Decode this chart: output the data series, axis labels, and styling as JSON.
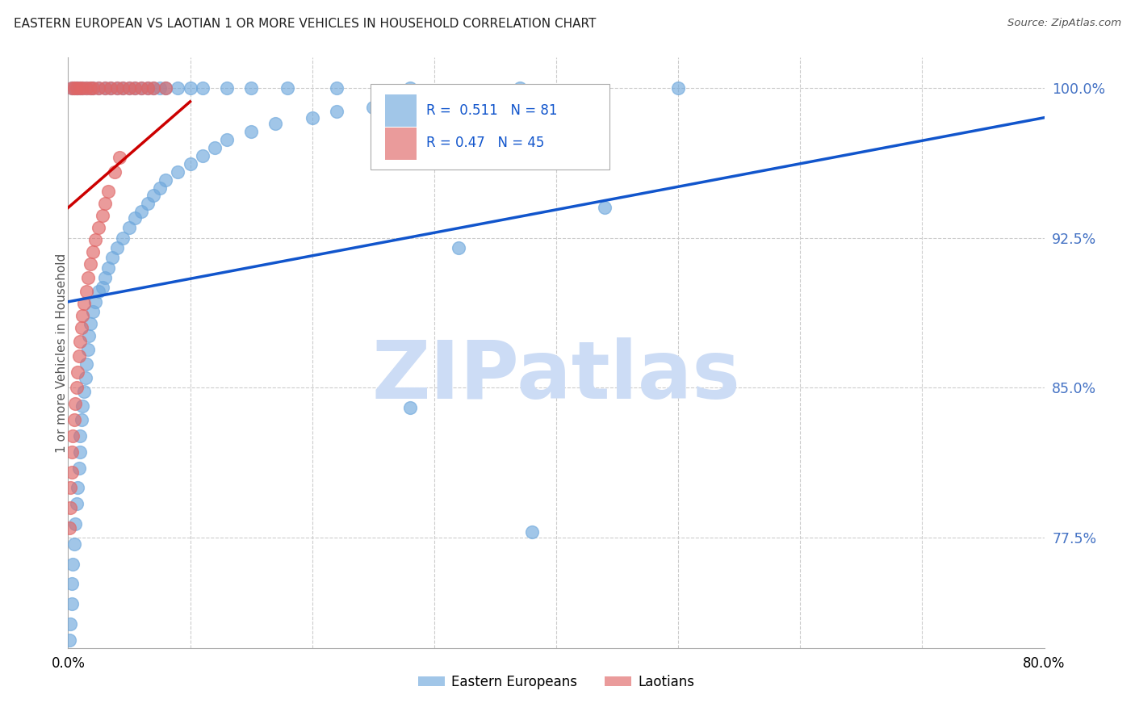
{
  "title": "EASTERN EUROPEAN VS LAOTIAN 1 OR MORE VEHICLES IN HOUSEHOLD CORRELATION CHART",
  "source": "Source: ZipAtlas.com",
  "ylabel": "1 or more Vehicles in Household",
  "ytick_labels": [
    "100.0%",
    "92.5%",
    "85.0%",
    "77.5%"
  ],
  "ytick_values": [
    1.0,
    0.925,
    0.85,
    0.775
  ],
  "xlim": [
    0.0,
    0.8
  ],
  "ylim": [
    0.72,
    1.015
  ],
  "blue_R": 0.511,
  "blue_N": 81,
  "pink_R": 0.47,
  "pink_N": 45,
  "blue_color": "#6fa8dc",
  "pink_color": "#e06666",
  "blue_line_color": "#1155cc",
  "pink_line_color": "#cc0000",
  "legend_label_blue": "Eastern Europeans",
  "legend_label_pink": "Laotians",
  "watermark": "ZIPatlas",
  "watermark_color": "#c9daf8",
  "blue_scatter_x": [
    0.001,
    0.002,
    0.003,
    0.003,
    0.004,
    0.005,
    0.006,
    0.007,
    0.008,
    0.009,
    0.01,
    0.01,
    0.011,
    0.012,
    0.013,
    0.014,
    0.015,
    0.016,
    0.017,
    0.018,
    0.02,
    0.022,
    0.025,
    0.028,
    0.03,
    0.033,
    0.036,
    0.04,
    0.045,
    0.05,
    0.055,
    0.06,
    0.065,
    0.07,
    0.075,
    0.08,
    0.09,
    0.1,
    0.11,
    0.12,
    0.13,
    0.15,
    0.17,
    0.2,
    0.22,
    0.25,
    0.28,
    0.32,
    0.38,
    0.44,
    0.003,
    0.005,
    0.007,
    0.008,
    0.01,
    0.012,
    0.015,
    0.018,
    0.02,
    0.025,
    0.03,
    0.035,
    0.04,
    0.045,
    0.05,
    0.055,
    0.06,
    0.065,
    0.07,
    0.075,
    0.08,
    0.09,
    0.1,
    0.11,
    0.13,
    0.15,
    0.18,
    0.22,
    0.28,
    0.37,
    0.5
  ],
  "blue_scatter_y": [
    0.724,
    0.732,
    0.742,
    0.752,
    0.762,
    0.772,
    0.782,
    0.792,
    0.8,
    0.81,
    0.818,
    0.826,
    0.834,
    0.841,
    0.848,
    0.855,
    0.862,
    0.869,
    0.876,
    0.882,
    0.888,
    0.893,
    0.898,
    0.9,
    0.905,
    0.91,
    0.915,
    0.92,
    0.925,
    0.93,
    0.935,
    0.938,
    0.942,
    0.946,
    0.95,
    0.954,
    0.958,
    0.962,
    0.966,
    0.97,
    0.974,
    0.978,
    0.982,
    0.985,
    0.988,
    0.99,
    0.84,
    0.92,
    0.778,
    0.94,
    1.0,
    1.0,
    1.0,
    1.0,
    1.0,
    1.0,
    1.0,
    1.0,
    1.0,
    1.0,
    1.0,
    1.0,
    1.0,
    1.0,
    1.0,
    1.0,
    1.0,
    1.0,
    1.0,
    1.0,
    1.0,
    1.0,
    1.0,
    1.0,
    1.0,
    1.0,
    1.0,
    1.0,
    1.0,
    1.0,
    1.0
  ],
  "pink_scatter_x": [
    0.001,
    0.002,
    0.002,
    0.003,
    0.003,
    0.004,
    0.005,
    0.006,
    0.007,
    0.008,
    0.009,
    0.01,
    0.011,
    0.012,
    0.013,
    0.015,
    0.016,
    0.018,
    0.02,
    0.022,
    0.025,
    0.028,
    0.03,
    0.033,
    0.038,
    0.042,
    0.003,
    0.005,
    0.007,
    0.01,
    0.012,
    0.015,
    0.018,
    0.02,
    0.025,
    0.03,
    0.035,
    0.04,
    0.045,
    0.05,
    0.055,
    0.06,
    0.065,
    0.07,
    0.08
  ],
  "pink_scatter_y": [
    0.78,
    0.79,
    0.8,
    0.808,
    0.818,
    0.826,
    0.834,
    0.842,
    0.85,
    0.858,
    0.866,
    0.873,
    0.88,
    0.886,
    0.892,
    0.898,
    0.905,
    0.912,
    0.918,
    0.924,
    0.93,
    0.936,
    0.942,
    0.948,
    0.958,
    0.965,
    1.0,
    1.0,
    1.0,
    1.0,
    1.0,
    1.0,
    1.0,
    1.0,
    1.0,
    1.0,
    1.0,
    1.0,
    1.0,
    1.0,
    1.0,
    1.0,
    1.0,
    1.0,
    1.0
  ],
  "blue_line_x0": 0.0,
  "blue_line_y0": 0.893,
  "blue_line_x1": 0.8,
  "blue_line_y1": 0.985,
  "pink_line_x0": 0.0,
  "pink_line_y0": 0.94,
  "pink_line_x1": 0.1,
  "pink_line_y1": 0.993
}
